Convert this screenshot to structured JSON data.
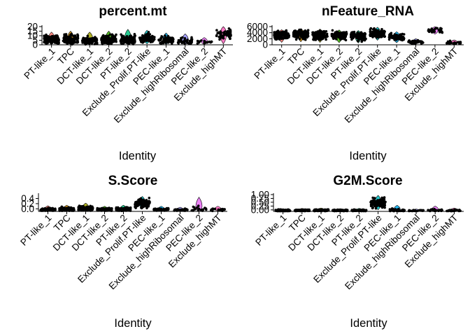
{
  "chart_data": [
    {
      "type": "scatter",
      "title": "percent.mt",
      "xlabel": "Identity",
      "ylabel": "",
      "ylim": [
        0,
        20
      ],
      "yticks": [
        "0",
        "5",
        "10",
        "15",
        "20"
      ],
      "grid": false,
      "legend": "none",
      "categories": [
        "PT-like_1",
        "TPC",
        "DCT-like_1",
        "DCT-like_2",
        "PT-like_2",
        "Exclude_Prolif.PT-like",
        "PEC-like_1",
        "Exclude_highRibosomal",
        "PEC-like_2",
        "Exclude_highMT"
      ],
      "series": [
        {
          "ranges": [
            [
              0.5,
              14
            ],
            [
              0.5,
              15
            ],
            [
              0.5,
              14
            ],
            [
              0.5,
              15
            ],
            [
              0.5,
              17
            ],
            [
              1,
              16
            ],
            [
              0.5,
              13
            ],
            [
              0.5,
              12
            ],
            [
              0.5,
              8
            ],
            [
              1,
              20
            ]
          ],
          "medians": [
            6,
            6,
            5,
            6,
            6,
            7,
            5,
            4,
            3,
            12
          ],
          "density": [
            130,
            140,
            120,
            115,
            110,
            90,
            65,
            40,
            18,
            55
          ]
        }
      ]
    },
    {
      "type": "scatter",
      "title": "nFeature_RNA",
      "xlabel": "Identity",
      "ylabel": "",
      "ylim": [
        0,
        6000
      ],
      "yticks": [
        "0",
        "2000",
        "4000",
        "6000"
      ],
      "grid": false,
      "legend": "none",
      "categories": [
        "PT-like_1",
        "TPC",
        "DCT-like_1",
        "DCT-like_2",
        "PT-like_2",
        "Exclude_Prolif.PT-like",
        "PEC-like_1",
        "Exclude_highRibosomal",
        "PEC-like_2",
        "Exclude_highMT"
      ],
      "series": [
        {
          "ranges": [
            [
              800,
              5000
            ],
            [
              1000,
              5300
            ],
            [
              800,
              5200
            ],
            [
              700,
              4900
            ],
            [
              600,
              4700
            ],
            [
              1500,
              5800
            ],
            [
              700,
              4300
            ],
            [
              300,
              2000
            ],
            [
              3500,
              6000
            ],
            [
              200,
              1600
            ]
          ],
          "medians": [
            3200,
            3500,
            3200,
            3000,
            2800,
            3800,
            2600,
            900,
            4800,
            700
          ],
          "density": [
            150,
            150,
            140,
            120,
            110,
            90,
            70,
            40,
            30,
            25
          ]
        }
      ]
    },
    {
      "type": "scatter",
      "title": "S.Score",
      "xlabel": "Identity",
      "ylabel": "",
      "ylim": [
        -0.1,
        0.55
      ],
      "yticks": [
        "0.0",
        "0.2",
        "0.4"
      ],
      "grid": false,
      "legend": "none",
      "categories": [
        "PT-like_1",
        "TPC",
        "DCT-like_1",
        "DCT-like_2",
        "PT-like_2",
        "Exclude_Prolif.PT-like",
        "PEC-like_1",
        "Exclude_highRibosomal",
        "PEC-like_2",
        "Exclude_highMT"
      ],
      "series": [
        {
          "ranges": [
            [
              -0.08,
              0.12
            ],
            [
              -0.08,
              0.14
            ],
            [
              -0.08,
              0.22
            ],
            [
              -0.08,
              0.1
            ],
            [
              -0.08,
              0.14
            ],
            [
              0.0,
              0.48
            ],
            [
              -0.08,
              0.1
            ],
            [
              -0.08,
              0.06
            ],
            [
              -0.08,
              0.45
            ],
            [
              -0.08,
              0.1
            ]
          ],
          "medians": [
            -0.03,
            -0.02,
            0.01,
            -0.03,
            -0.02,
            0.2,
            -0.03,
            -0.04,
            -0.02,
            -0.03
          ],
          "density": [
            120,
            130,
            120,
            110,
            100,
            110,
            60,
            30,
            20,
            25
          ]
        }
      ]
    },
    {
      "type": "scatter",
      "title": "G2M.Score",
      "xlabel": "Identity",
      "ylabel": "",
      "ylim": [
        -0.1,
        1.0
      ],
      "yticks": [
        "0.00",
        "0.25",
        "0.50",
        "0.75",
        "1.00"
      ],
      "grid": false,
      "legend": "none",
      "categories": [
        "PT-like_1",
        "TPC",
        "DCT-like_1",
        "DCT-like_2",
        "PT-like_2",
        "Exclude_Prolif.PT-like",
        "PEC-like_1",
        "Exclude_highRibosomal",
        "PEC-like_2",
        "Exclude_highMT"
      ],
      "series": [
        {
          "ranges": [
            [
              -0.08,
              0.08
            ],
            [
              -0.08,
              0.1
            ],
            [
              -0.08,
              0.12
            ],
            [
              -0.08,
              0.08
            ],
            [
              -0.08,
              0.1
            ],
            [
              0.0,
              0.95
            ],
            [
              -0.08,
              0.3
            ],
            [
              -0.08,
              0.06
            ],
            [
              -0.08,
              0.25
            ],
            [
              -0.08,
              0.12
            ]
          ],
          "medians": [
            -0.04,
            -0.04,
            -0.03,
            -0.04,
            -0.04,
            0.45,
            -0.04,
            -0.05,
            -0.04,
            -0.04
          ],
          "density": [
            110,
            120,
            110,
            100,
            90,
            120,
            50,
            25,
            20,
            25
          ]
        }
      ]
    }
  ]
}
